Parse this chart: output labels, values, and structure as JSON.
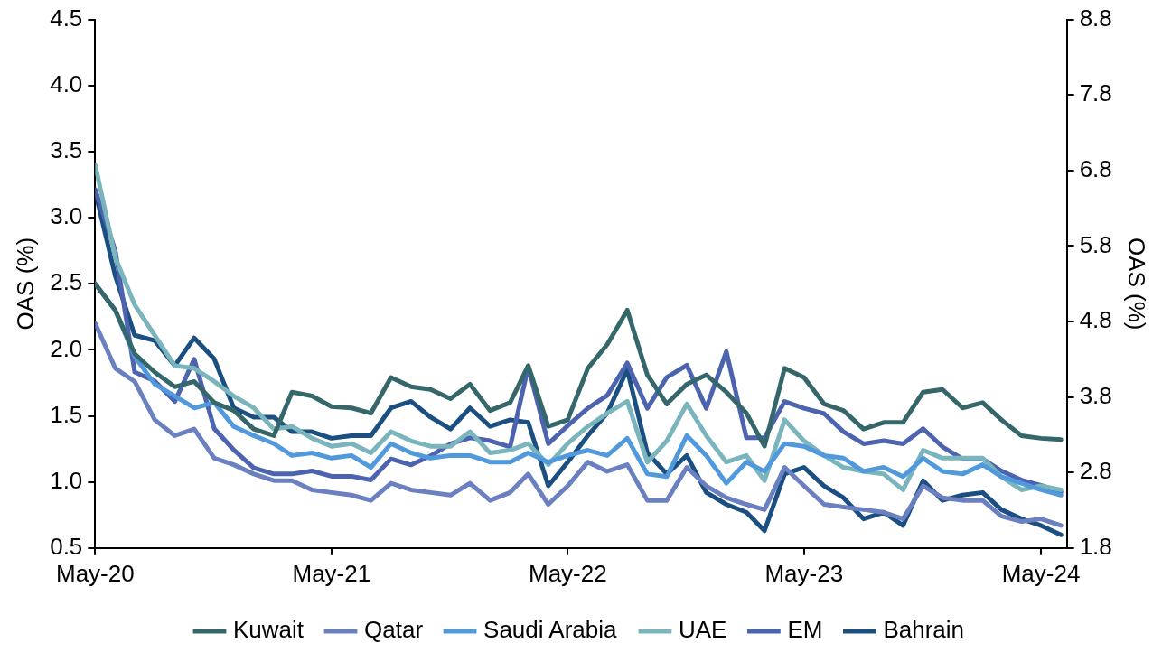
{
  "chart_data": {
    "type": "line",
    "ylabel": "OAS (%)",
    "y2label": "OAS (%)",
    "grid": false,
    "legend": "bottom",
    "marker": "none",
    "line_style": "solid",
    "x": [
      "2020-05",
      "2020-06",
      "2020-07",
      "2020-08",
      "2020-09",
      "2020-10",
      "2020-11",
      "2020-12",
      "2021-01",
      "2021-02",
      "2021-03",
      "2021-04",
      "2021-05",
      "2021-06",
      "2021-07",
      "2021-08",
      "2021-09",
      "2021-10",
      "2021-11",
      "2021-12",
      "2022-01",
      "2022-02",
      "2022-03",
      "2022-04",
      "2022-05",
      "2022-06",
      "2022-07",
      "2022-08",
      "2022-09",
      "2022-10",
      "2022-11",
      "2022-12",
      "2023-01",
      "2023-02",
      "2023-03",
      "2023-04",
      "2023-05",
      "2023-06",
      "2023-07",
      "2023-08",
      "2023-09",
      "2023-10",
      "2023-11",
      "2023-12",
      "2024-01",
      "2024-02",
      "2024-03",
      "2024-04",
      "2024-05",
      "2024-06"
    ],
    "xlim": [
      "2020-05-01",
      "2024-06-10"
    ],
    "xticks": [
      {
        "value": "2020-05",
        "label": "May-20"
      },
      {
        "value": "2021-05",
        "label": "May-21"
      },
      {
        "value": "2022-05",
        "label": "May-22"
      },
      {
        "value": "2023-05",
        "label": "May-23"
      },
      {
        "value": "2024-05",
        "label": "May-24"
      }
    ],
    "ylim": [
      0.5,
      4.5
    ],
    "yticks": [
      {
        "value": 0.5,
        "label": "0.5"
      },
      {
        "value": 1,
        "label": "1.0"
      },
      {
        "value": 1.5,
        "label": "1.5"
      },
      {
        "value": 2,
        "label": "2.0"
      },
      {
        "value": 2.5,
        "label": "2.5"
      },
      {
        "value": 3,
        "label": "3.0"
      },
      {
        "value": 3.5,
        "label": "3.5"
      },
      {
        "value": 4,
        "label": "4.0"
      },
      {
        "value": 4.5,
        "label": "4.5"
      }
    ],
    "y2lim": [
      1.8,
      8.8
    ],
    "y2ticks": [
      1.8,
      2.8,
      3.8,
      4.8,
      5.8,
      6.8,
      7.8,
      8.8
    ],
    "series": [
      {
        "name": "Kuwait",
        "color": "#35676a",
        "values": [
          2.5,
          2.3,
          1.97,
          1.83,
          1.72,
          1.76,
          1.6,
          1.54,
          1.4,
          1.35,
          1.68,
          1.65,
          1.57,
          1.56,
          1.52,
          1.79,
          1.72,
          1.7,
          1.63,
          1.74,
          1.54,
          1.6,
          1.88,
          1.42,
          1.47,
          1.86,
          2.04,
          2.3,
          1.81,
          1.59,
          1.74,
          1.81,
          1.68,
          1.52,
          1.27,
          1.86,
          1.79,
          1.59,
          1.54,
          1.4,
          1.45,
          1.45,
          1.68,
          1.7,
          1.56,
          1.6,
          1.47,
          1.35,
          1.33,
          1.32
        ]
      },
      {
        "name": "Qatar",
        "color": "#6b80c0",
        "values": [
          2.2,
          1.86,
          1.76,
          1.47,
          1.35,
          1.4,
          1.18,
          1.13,
          1.06,
          1.01,
          1.01,
          0.94,
          0.92,
          0.9,
          0.86,
          0.99,
          0.94,
          0.92,
          0.9,
          0.99,
          0.86,
          0.92,
          1.06,
          0.83,
          0.97,
          1.15,
          1.08,
          1.13,
          0.86,
          0.86,
          1.11,
          0.97,
          0.88,
          0.83,
          0.79,
          1.11,
          0.97,
          0.83,
          0.81,
          0.79,
          0.77,
          0.72,
          0.97,
          0.88,
          0.86,
          0.86,
          0.74,
          0.7,
          0.72,
          0.67
        ]
      },
      {
        "name": "Saudi Arabia",
        "color": "#5199dd",
        "values": [
          2.5,
          2.3,
          1.95,
          1.74,
          1.65,
          1.56,
          1.6,
          1.42,
          1.35,
          1.29,
          1.2,
          1.22,
          1.18,
          1.2,
          1.11,
          1.29,
          1.22,
          1.18,
          1.2,
          1.2,
          1.15,
          1.15,
          1.22,
          1.15,
          1.2,
          1.24,
          1.2,
          1.33,
          1.06,
          1.04,
          1.35,
          1.2,
          0.99,
          1.15,
          1.08,
          1.29,
          1.27,
          1.2,
          1.18,
          1.08,
          1.11,
          1.04,
          1.18,
          1.08,
          1.06,
          1.13,
          1.04,
          0.99,
          0.94,
          0.9
        ]
      },
      {
        "name": "UAE",
        "color": "#7ab4bc",
        "values": [
          3.4,
          2.7,
          2.34,
          2.11,
          1.88,
          1.86,
          1.76,
          1.65,
          1.56,
          1.4,
          1.42,
          1.33,
          1.27,
          1.29,
          1.22,
          1.38,
          1.31,
          1.27,
          1.27,
          1.38,
          1.22,
          1.24,
          1.29,
          1.13,
          1.29,
          1.42,
          1.52,
          1.61,
          1.15,
          1.31,
          1.59,
          1.35,
          1.15,
          1.2,
          1.01,
          1.47,
          1.31,
          1.2,
          1.11,
          1.08,
          1.06,
          0.94,
          1.24,
          1.18,
          1.18,
          1.18,
          1.04,
          0.94,
          0.97,
          0.94
        ]
      },
      {
        "name": "EM",
        "color": "#4c63b0",
        "axis": "y2",
        "values": [
          6.55,
          5.74,
          4.13,
          4.01,
          3.74,
          4.3,
          3.38,
          3.1,
          2.86,
          2.78,
          2.78,
          2.82,
          2.75,
          2.75,
          2.7,
          2.98,
          2.9,
          3.02,
          3.18,
          3.26,
          3.22,
          3.14,
          4.2,
          3.18,
          3.42,
          3.65,
          3.82,
          4.25,
          3.65,
          4.06,
          4.22,
          3.65,
          4.4,
          3.26,
          3.26,
          3.74,
          3.65,
          3.58,
          3.34,
          3.18,
          3.22,
          3.18,
          3.38,
          3.14,
          2.98,
          2.98,
          2.82,
          2.7,
          2.63,
          2.54
        ]
      },
      {
        "name": "Bahrain",
        "color": "#1b4f82",
        "values": [
          3.2,
          2.56,
          2.11,
          2.07,
          1.88,
          2.09,
          1.93,
          1.56,
          1.49,
          1.49,
          1.38,
          1.38,
          1.33,
          1.35,
          1.35,
          1.56,
          1.61,
          1.49,
          1.4,
          1.56,
          1.42,
          1.47,
          1.45,
          0.97,
          1.15,
          1.35,
          1.52,
          1.85,
          1.22,
          1.06,
          1.2,
          0.92,
          0.83,
          0.77,
          0.63,
          1.06,
          1.11,
          0.97,
          0.88,
          0.72,
          0.77,
          0.67,
          1.01,
          0.86,
          0.9,
          0.92,
          0.79,
          0.72,
          0.67,
          0.6
        ]
      }
    ]
  }
}
